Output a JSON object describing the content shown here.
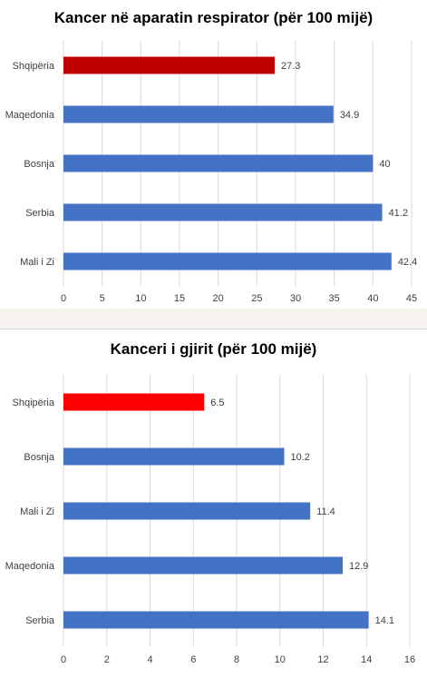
{
  "chart_data": [
    {
      "type": "bar",
      "orientation": "horizontal",
      "title": "Kancer në aparatin respirator (për 100 mijë)",
      "categories": [
        "Shqipëria",
        "Maqedonia",
        "Bosnja",
        "Serbia",
        "Mali i Zi"
      ],
      "values": [
        27.3,
        34.9,
        40,
        41.2,
        42.4
      ],
      "value_labels": [
        "27.3",
        "34.9",
        "40",
        "41.2",
        "42.4"
      ],
      "bar_colors": [
        "#c00000",
        "#4472c4",
        "#4472c4",
        "#4472c4",
        "#4472c4"
      ],
      "xlim": [
        0,
        45
      ],
      "xticks": [
        0,
        5,
        10,
        15,
        20,
        25,
        30,
        35,
        40,
        45
      ],
      "grid": true
    },
    {
      "type": "bar",
      "orientation": "horizontal",
      "title": "Kanceri i gjirit (për 100 mijë)",
      "categories": [
        "Shqipëria",
        "Bosnja",
        "Mali i Zi",
        "Maqedonia",
        "Serbia"
      ],
      "values": [
        6.5,
        10.2,
        11.4,
        12.9,
        14.1
      ],
      "value_labels": [
        "6.5",
        "10.2",
        "11.4",
        "12.9",
        "14.1"
      ],
      "bar_colors": [
        "#ff0000",
        "#4472c4",
        "#4472c4",
        "#4472c4",
        "#4472c4"
      ],
      "xlim": [
        0,
        16
      ],
      "xticks": [
        0,
        2,
        4,
        6,
        8,
        10,
        12,
        14,
        16
      ],
      "grid": true
    }
  ]
}
